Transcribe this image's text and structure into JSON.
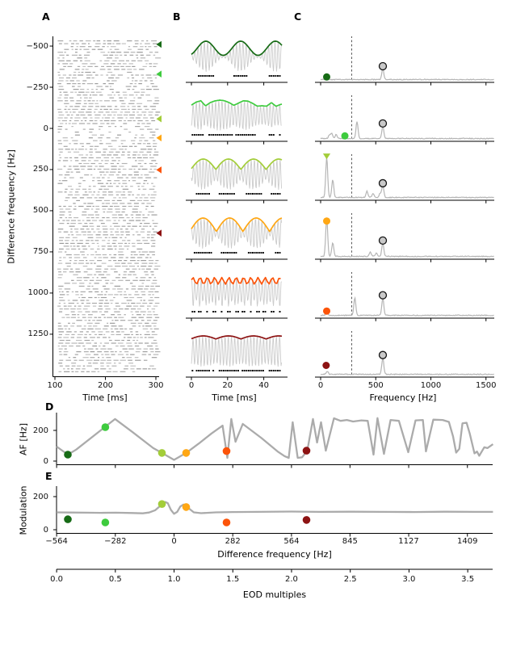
{
  "labels": {
    "panel_a": "A",
    "panel_b": "B",
    "panel_c": "C",
    "panel_d": "D",
    "panel_e": "E",
    "a_xlabel": "Time [ms]",
    "a_ylabel": "Difference frequency [Hz]",
    "b_xlabel": "Time [ms]",
    "c_xlabel": "Frequency [Hz]",
    "d_ylabel": "AF [Hz]",
    "e_ylabel": "Modulation",
    "e_xlabel": "Difference frequency [Hz]",
    "eod_xlabel": "EOD multiples"
  },
  "eod_frequency_hz": 564,
  "colors": {
    "raster": "#9a9a9a",
    "gray_line": "#ababab",
    "spectrum_line": "#b5b5b5",
    "carrier": "#cbcbcb",
    "eod_marker_fill": "#c9c9c9",
    "axis": "#000000"
  },
  "conditions": [
    {
      "df_hz": -510,
      "color": "#176b16",
      "af_hz": 42,
      "modulation": 63,
      "c_marker": {
        "hz": 55,
        "h": 0.1,
        "shape": "circle"
      }
    },
    {
      "df_hz": -330,
      "color": "#3ecb3e",
      "af_hz": 221,
      "modulation": 44,
      "c_marker": {
        "hz": 220,
        "h": 0.1,
        "shape": "circle"
      }
    },
    {
      "df_hz": -58,
      "color": "#a3cd39",
      "af_hz": 53,
      "modulation": 155,
      "c_marker": {
        "hz": 55,
        "h": 1.02,
        "shape": "triangle-down"
      }
    },
    {
      "df_hz": 58,
      "color": "#ffa714",
      "af_hz": 53,
      "modulation": 137,
      "c_marker": {
        "hz": 55,
        "h": 0.88,
        "shape": "circle"
      }
    },
    {
      "df_hz": 252,
      "color": "#fc5409",
      "af_hz": 65,
      "modulation": 44,
      "c_marker": {
        "hz": 55,
        "h": 0.14,
        "shape": "circle"
      }
    },
    {
      "df_hz": 636,
      "color": "#8d1313",
      "af_hz": 68,
      "modulation": 59,
      "c_marker": {
        "hz": 50,
        "h": 0.25,
        "shape": "circle"
      }
    }
  ],
  "chart_data": [
    {
      "id": "A",
      "type": "scatter",
      "subtype": "spike-raster",
      "xlabel": "Time [ms]",
      "ylabel": "Difference frequency [Hz]",
      "xlim": [
        95,
        305
      ],
      "xticks": [
        100,
        200,
        300
      ],
      "ylim": [
        -560,
        1330
      ],
      "yticks": [
        -500,
        -250,
        0,
        250,
        500,
        750,
        1000,
        1250
      ],
      "n_trials": 117,
      "note": "Gray spike raster, one row per stimulus difference frequency; colored left-pointing arrowheads on the right edge mark the six example frequencies of the conditions list."
    },
    {
      "id": "B",
      "type": "line",
      "xlabel": "Time [ms]",
      "xticks": [
        0,
        20,
        40
      ],
      "xlim": [
        0,
        50
      ],
      "carrier_hz": 564,
      "rows": [
        {
          "env": "sine",
          "hz": 52,
          "base": 0.54,
          "amp": 0.46,
          "ph": -1.04,
          "thr": 0.6
        },
        {
          "env": "noise",
          "step_ms": 2.6,
          "lo": 0.55,
          "hi": 1.0,
          "thr": 0.68
        },
        {
          "env": "beat",
          "hz": 72,
          "lo": 0.32,
          "ph": 0.09,
          "thr": 0.68
        },
        {
          "env": "beat",
          "hz": 68,
          "lo": 0.12,
          "ph": 0.2,
          "thr": 0.6
        },
        {
          "env": "sine",
          "hz": 250,
          "base": 0.75,
          "amp": 0.22,
          "ph": 0.3,
          "env_step": 1.05,
          "thr": 0.72
        },
        {
          "env": "beat_top",
          "hz": 72,
          "base": 0.8,
          "amp": 0.2,
          "ph": 0.09,
          "thr": 0.87
        }
      ],
      "note": "Gray EOD carrier with colored amplitude-modulation envelope and spike raster dots below, one row per condition."
    },
    {
      "id": "C",
      "type": "line",
      "xlabel": "Frequency [Hz]",
      "xticks": [
        0,
        500,
        1000,
        1500
      ],
      "xlim": [
        0,
        1575
      ],
      "dashed_line_hz": 282,
      "eod_peak_hz": 564,
      "rows": [
        {
          "peaks": [
            [
              55,
              0.1
            ],
            [
              564,
              0.26
            ]
          ],
          "eod_h": 0.26
        },
        {
          "peaks": [
            [
              80,
              0.08
            ],
            [
              100,
              0.12
            ],
            [
              140,
              0.09
            ],
            [
              330,
              0.4
            ],
            [
              564,
              0.3
            ]
          ],
          "eod_h": 0.3
        },
        {
          "peaks": [
            [
              55,
              0.95
            ],
            [
              110,
              0.42
            ],
            [
              420,
              0.15
            ],
            [
              475,
              0.1
            ],
            [
              540,
              0.1
            ],
            [
              564,
              0.28
            ]
          ],
          "eod_h": 0.28
        },
        {
          "peaks": [
            [
              55,
              0.92
            ],
            [
              110,
              0.33
            ],
            [
              450,
              0.1
            ],
            [
              505,
              0.08
            ],
            [
              564,
              0.32
            ]
          ],
          "eod_h": 0.32
        },
        {
          "peaks": [
            [
              55,
              0.05
            ],
            [
              310,
              0.42
            ],
            [
              564,
              0.42
            ]
          ],
          "eod_h": 0.42
        },
        {
          "peaks": [
            [
              60,
              0.07
            ],
            [
              564,
              0.4
            ]
          ],
          "eod_h": 0.4
        }
      ],
      "note": "Gray power spectra; dashed line at EODf/2 = 282 Hz, gray circled marker on the EODf peak at 564 Hz, colored marker on the AM peak."
    },
    {
      "id": "D",
      "type": "line",
      "ylabel": "AF [Hz]",
      "yticks": [
        0,
        200
      ],
      "ylim": [
        0,
        300
      ],
      "x": [
        -564,
        -510,
        -470,
        -283,
        -200,
        -100,
        -58,
        0,
        58,
        120,
        180,
        233,
        256,
        275,
        295,
        330,
        420,
        500,
        531,
        551,
        570,
        594,
        615,
        640,
        667,
        687,
        706,
        729,
        768,
        800,
        830,
        860,
        900,
        930,
        958,
        977,
        1008,
        1040,
        1080,
        1125,
        1160,
        1195,
        1210,
        1245,
        1290,
        1320,
        1340,
        1355,
        1370,
        1385,
        1405,
        1420,
        1443,
        1455,
        1466,
        1490,
        1505,
        1532
      ],
      "y": [
        95,
        42,
        75,
        274,
        190,
        85,
        53,
        8,
        53,
        115,
        180,
        231,
        21,
        274,
        126,
        242,
        150,
        60,
        32,
        21,
        253,
        21,
        25,
        68,
        274,
        121,
        253,
        68,
        279,
        262,
        268,
        258,
        265,
        262,
        42,
        280,
        47,
        268,
        262,
        58,
        265,
        268,
        63,
        270,
        268,
        255,
        160,
        55,
        80,
        246,
        250,
        180,
        50,
        62,
        35,
        90,
        85,
        110
      ]
    },
    {
      "id": "E",
      "type": "line",
      "ylabel": "Modulation",
      "yticks": [
        0,
        200
      ],
      "ylim": [
        0,
        280
      ],
      "xlabel": "Difference frequency [Hz]",
      "xticks": [
        -564,
        -282,
        0,
        282,
        564,
        845,
        1127,
        1409
      ],
      "x": [
        -564,
        -500,
        -420,
        -350,
        -280,
        -200,
        -150,
        -120,
        -90,
        -70,
        -55,
        -42,
        -30,
        -15,
        0,
        15,
        30,
        45,
        58,
        75,
        95,
        130,
        200,
        280,
        400,
        564,
        700,
        850,
        1000,
        1150,
        1300,
        1450,
        1532
      ],
      "y": [
        105,
        104,
        103,
        102,
        103,
        101,
        99,
        104,
        118,
        140,
        157,
        168,
        160,
        120,
        96,
        108,
        140,
        152,
        138,
        125,
        105,
        100,
        105,
        107,
        108,
        110,
        108,
        109,
        108,
        107,
        109,
        108,
        108
      ]
    },
    {
      "id": "EOD",
      "type": "axis",
      "xlabel": "EOD multiples",
      "xticks": [
        0.0,
        0.5,
        1.0,
        1.5,
        2.0,
        2.5,
        3.0,
        3.5
      ]
    }
  ]
}
